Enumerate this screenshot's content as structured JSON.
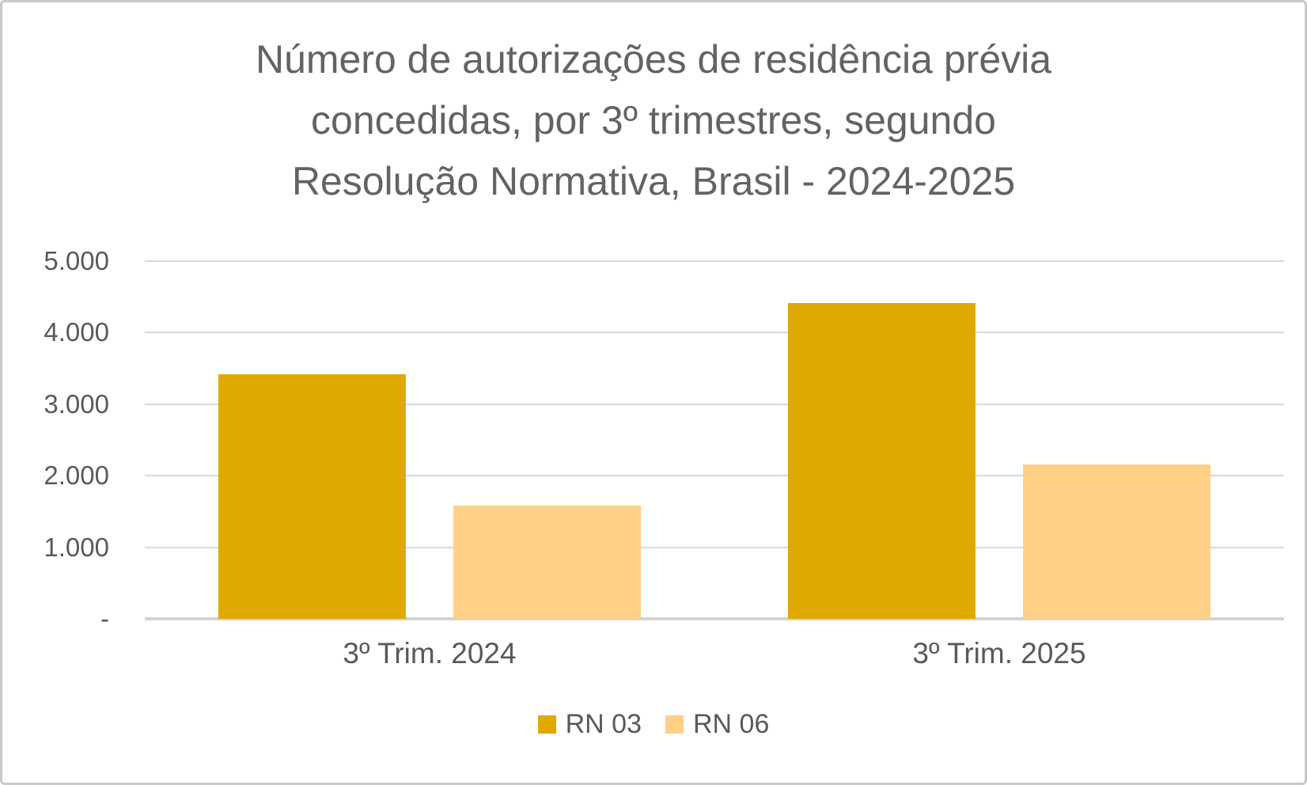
{
  "title": {
    "lines": [
      "Número de autorizações de residência prévia",
      "concedidas, por 3º trimestres, segundo",
      "Resolução Normativa, Brasil - 2024-2025"
    ]
  },
  "chart_data": {
    "type": "bar",
    "title": "Número de autorizações de residência prévia concedidas, por 3º trimestres, segundo Resolução Normativa, Brasil - 2024-2025",
    "categories": [
      "3º Trim. 2024",
      "3º Trim. 2025"
    ],
    "series": [
      {
        "name": "RN 03",
        "color": "#e0a902",
        "values": [
          3420,
          4410
        ]
      },
      {
        "name": "RN 06",
        "color": "#ffd187",
        "values": [
          1580,
          2160
        ]
      }
    ],
    "xlabel": "",
    "ylabel": "",
    "ylim": [
      0,
      5000
    ],
    "ytick_interval": 1000,
    "ytick_labels": [
      "-",
      "1.000",
      "2.000",
      "3.000",
      "4.000",
      "5.000"
    ],
    "grid": true,
    "legend_position": "bottom"
  },
  "style": {
    "series_dark": "#e0a902",
    "series_light": "#ffd187",
    "text_gray": "#595959",
    "title_gray": "#636363",
    "gridline_color": "#d9d9d9",
    "axis_line_color": "#d3d3d3",
    "frame_border_color": "#c9c9c9",
    "background": "#ffffff"
  }
}
